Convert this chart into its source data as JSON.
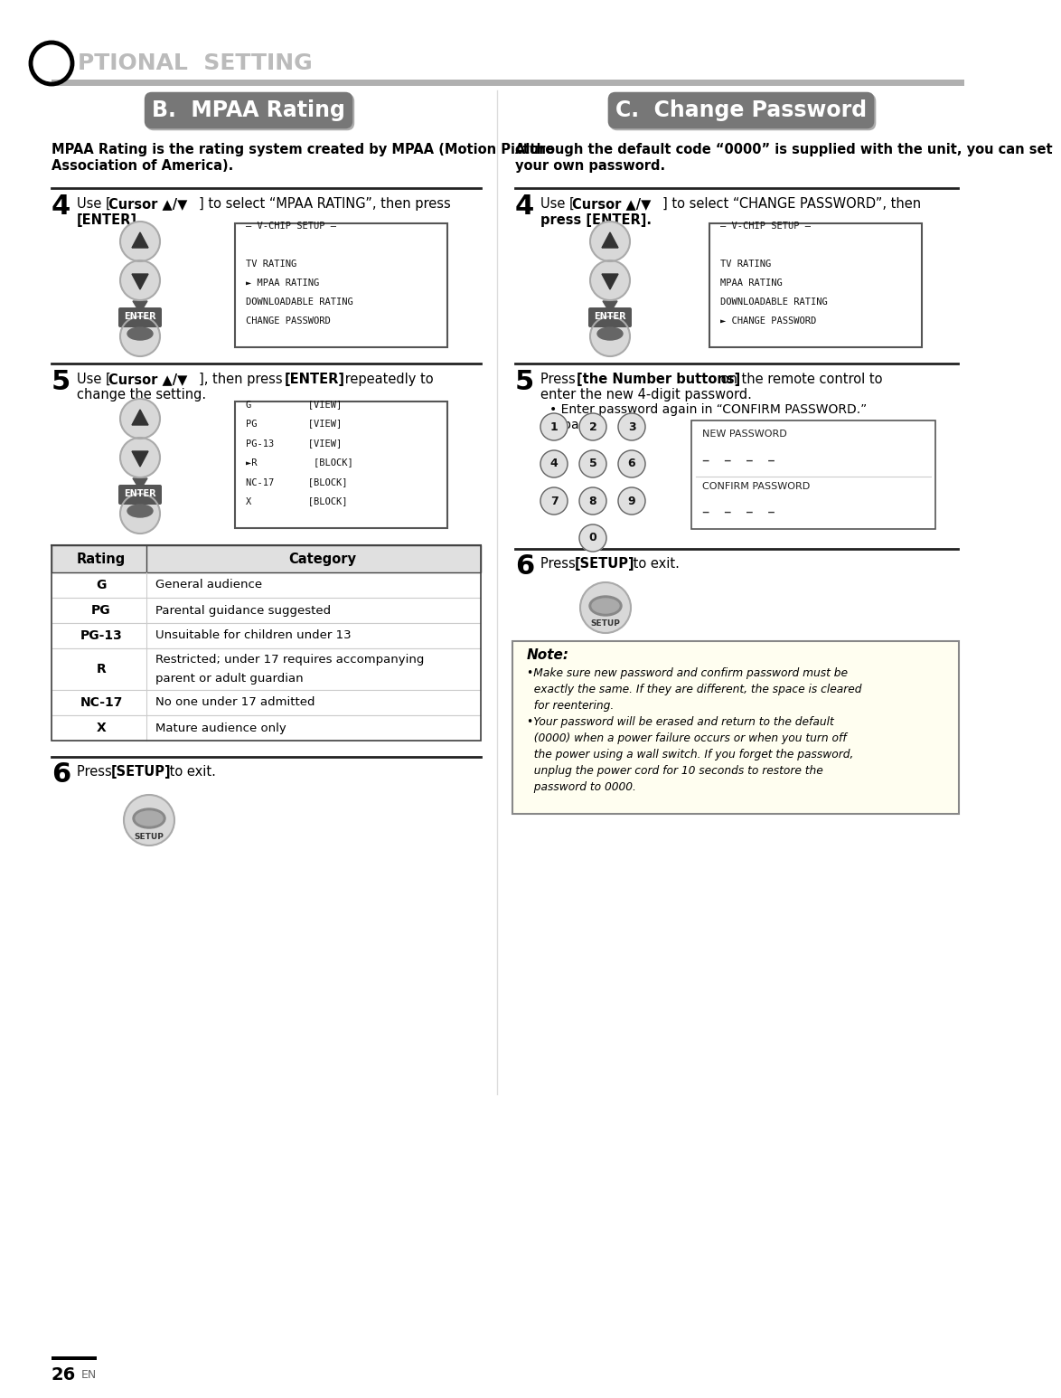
{
  "page_bg": "#ffffff",
  "header_O_text": "O",
  "header_rest": "PTIONAL  SETTING",
  "left_title": "B.  MPAA Rating",
  "right_title": "C.  Change Password",
  "left_desc_line1": "MPAA Rating is the rating system created by MPAA (Motion Picture",
  "left_desc_line2": "Association of America).",
  "right_desc_line1": "Although the default code “0000” is supplied with the unit, you can set",
  "right_desc_line2": "your own password.",
  "vchip_left": [
    "– V-CHIP SETUP –",
    "",
    "TV RATING",
    "► MPAA RATING",
    "DOWNLOADABLE RATING",
    "CHANGE PASSWORD"
  ],
  "vchip_right": [
    "– V-CHIP SETUP –",
    "",
    "TV RATING",
    "MPAA RATING",
    "DOWNLOADABLE RATING",
    "► CHANGE PASSWORD"
  ],
  "mpaa_box": [
    "G          [VIEW]",
    "PG         [VIEW]",
    "PG-13      [VIEW]",
    "►R          [BLOCK]",
    "NC-17      [BLOCK]",
    "X          [BLOCK]"
  ],
  "rating_rows": [
    [
      "G",
      "General audience"
    ],
    [
      "PG",
      "Parental guidance suggested"
    ],
    [
      "PG-13",
      "Unsuitable for children under 13"
    ],
    [
      "R",
      "Restricted; under 17 requires accompanying\nparent or adult guardian"
    ],
    [
      "NC-17",
      "No one under 17 admitted"
    ],
    [
      "X",
      "Mature audience only"
    ]
  ],
  "note_lines": [
    "•Make sure new password and confirm password must be",
    "  exactly the same. If they are different, the space is cleared",
    "  for reentering.",
    "•Your password will be erased and return to the default",
    "  (0000) when a power failure occurs or when you turn off",
    "  the power using a wall switch. If you forget the password,",
    "  unplug the power cord for 10 seconds to restore the",
    "  password to 0000."
  ],
  "page_number": "26",
  "divider_color": "#888888",
  "header_bar_color": "#aaaaaa",
  "title_bg_color": "#bbbbbb",
  "title_fg_color": "#ffffff",
  "title_shadow_color": "#888888",
  "table_header_bg": "#e8e8e8",
  "note_bg": "#fffff8"
}
